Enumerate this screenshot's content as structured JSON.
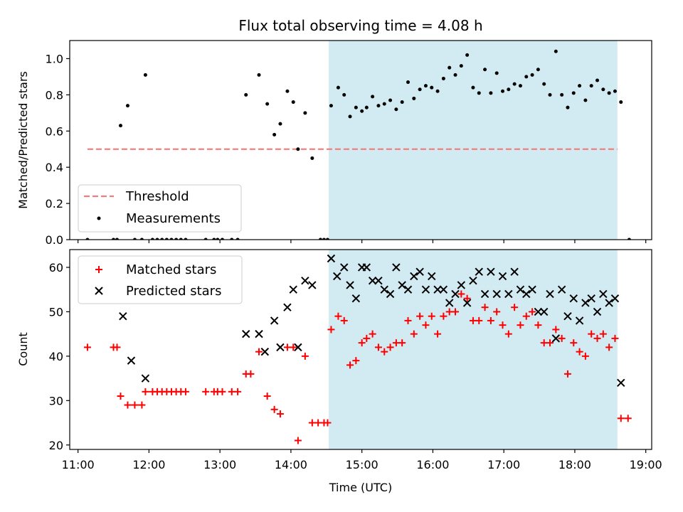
{
  "chart_data": [
    {
      "type": "scatter",
      "title": "Flux total observing time = 4.08 h",
      "xlabel": "",
      "ylabel": "Matched/Predicted stars",
      "xlim": [
        "10:53",
        "19:05"
      ],
      "ylim": [
        0,
        1.1
      ],
      "yticks": [
        "0.0",
        "0.2",
        "0.4",
        "0.6",
        "0.8",
        "1.0"
      ],
      "shaded_span": [
        "14:32",
        "18:36"
      ],
      "shade_color": "#add8e6",
      "legend": {
        "placement": "lower-left",
        "entries": [
          "Threshold",
          "Measurements"
        ]
      },
      "threshold": {
        "name": "Threshold",
        "y": 0.5,
        "x_range": [
          "11:08",
          "18:36"
        ],
        "color": "#f08080",
        "style": "dashed"
      },
      "series": [
        {
          "name": "Measurements",
          "marker": "dot",
          "color": "#000000",
          "points": [
            [
              "11:08",
              0.0
            ],
            [
              "11:30",
              0.0
            ],
            [
              "11:33",
              0.0
            ],
            [
              "11:36",
              0.63
            ],
            [
              "11:42",
              0.74
            ],
            [
              "11:48",
              0.0
            ],
            [
              "11:54",
              0.0
            ],
            [
              "11:57",
              0.91
            ],
            [
              "12:03",
              0.0
            ],
            [
              "12:07",
              0.0
            ],
            [
              "12:11",
              0.0
            ],
            [
              "12:15",
              0.0
            ],
            [
              "12:19",
              0.0
            ],
            [
              "12:23",
              0.0
            ],
            [
              "12:27",
              0.0
            ],
            [
              "12:31",
              0.0
            ],
            [
              "12:48",
              0.0
            ],
            [
              "12:55",
              0.0
            ],
            [
              "12:58",
              0.0
            ],
            [
              "13:02",
              0.0
            ],
            [
              "13:10",
              0.0
            ],
            [
              "13:15",
              0.0
            ],
            [
              "13:22",
              0.8
            ],
            [
              "13:33",
              0.91
            ],
            [
              "13:40",
              0.75
            ],
            [
              "13:46",
              0.58
            ],
            [
              "13:51",
              0.64
            ],
            [
              "13:57",
              0.82
            ],
            [
              "14:02",
              0.76
            ],
            [
              "14:06",
              0.5
            ],
            [
              "14:12",
              0.7
            ],
            [
              "14:18",
              0.45
            ],
            [
              "14:25",
              0.0
            ],
            [
              "14:28",
              0.0
            ],
            [
              "14:31",
              0.0
            ],
            [
              "14:34",
              0.74
            ],
            [
              "14:40",
              0.84
            ],
            [
              "14:45",
              0.8
            ],
            [
              "14:50",
              0.68
            ],
            [
              "14:55",
              0.73
            ],
            [
              "15:00",
              0.71
            ],
            [
              "15:04",
              0.73
            ],
            [
              "15:09",
              0.79
            ],
            [
              "15:14",
              0.74
            ],
            [
              "15:19",
              0.75
            ],
            [
              "15:24",
              0.77
            ],
            [
              "15:29",
              0.72
            ],
            [
              "15:34",
              0.76
            ],
            [
              "15:39",
              0.87
            ],
            [
              "15:44",
              0.78
            ],
            [
              "15:49",
              0.83
            ],
            [
              "15:54",
              0.85
            ],
            [
              "15:59",
              0.84
            ],
            [
              "16:04",
              0.82
            ],
            [
              "16:09",
              0.89
            ],
            [
              "16:14",
              0.95
            ],
            [
              "16:19",
              0.91
            ],
            [
              "16:24",
              0.96
            ],
            [
              "16:29",
              1.02
            ],
            [
              "16:34",
              0.84
            ],
            [
              "16:39",
              0.81
            ],
            [
              "16:44",
              0.94
            ],
            [
              "16:49",
              0.81
            ],
            [
              "16:54",
              0.92
            ],
            [
              "16:59",
              0.82
            ],
            [
              "17:04",
              0.83
            ],
            [
              "17:09",
              0.86
            ],
            [
              "17:14",
              0.85
            ],
            [
              "17:19",
              0.9
            ],
            [
              "17:24",
              0.91
            ],
            [
              "17:29",
              0.94
            ],
            [
              "17:34",
              0.86
            ],
            [
              "17:39",
              0.8
            ],
            [
              "17:44",
              1.04
            ],
            [
              "17:49",
              0.8
            ],
            [
              "17:54",
              0.73
            ],
            [
              "17:59",
              0.81
            ],
            [
              "18:04",
              0.85
            ],
            [
              "18:09",
              0.77
            ],
            [
              "18:14",
              0.85
            ],
            [
              "18:19",
              0.88
            ],
            [
              "18:24",
              0.83
            ],
            [
              "18:29",
              0.81
            ],
            [
              "18:34",
              0.82
            ],
            [
              "18:39",
              0.76
            ],
            [
              "18:46",
              0.0
            ]
          ]
        }
      ]
    },
    {
      "type": "scatter",
      "title": "",
      "xlabel": "Time (UTC)",
      "ylabel": "Count",
      "xlim": [
        "10:53",
        "19:05"
      ],
      "ylim": [
        19,
        64
      ],
      "yticks": [
        "20",
        "30",
        "40",
        "50",
        "60"
      ],
      "xticks": [
        "11:00",
        "12:00",
        "13:00",
        "14:00",
        "15:00",
        "16:00",
        "17:00",
        "18:00",
        "19:00"
      ],
      "shaded_span": [
        "14:32",
        "18:36"
      ],
      "shade_color": "#add8e6",
      "legend": {
        "placement": "upper-left",
        "entries": [
          "Matched stars",
          "Predicted stars"
        ]
      },
      "series": [
        {
          "name": "Matched stars",
          "marker": "plus",
          "color": "#ff0000",
          "points": [
            [
              "11:08",
              42
            ],
            [
              "11:30",
              42
            ],
            [
              "11:33",
              42
            ],
            [
              "11:36",
              31
            ],
            [
              "11:42",
              29
            ],
            [
              "11:48",
              29
            ],
            [
              "11:54",
              29
            ],
            [
              "11:57",
              32
            ],
            [
              "12:03",
              32
            ],
            [
              "12:07",
              32
            ],
            [
              "12:11",
              32
            ],
            [
              "12:15",
              32
            ],
            [
              "12:19",
              32
            ],
            [
              "12:23",
              32
            ],
            [
              "12:27",
              32
            ],
            [
              "12:31",
              32
            ],
            [
              "12:48",
              32
            ],
            [
              "12:55",
              32
            ],
            [
              "12:58",
              32
            ],
            [
              "13:02",
              32
            ],
            [
              "13:10",
              32
            ],
            [
              "13:15",
              32
            ],
            [
              "13:22",
              36
            ],
            [
              "13:26",
              36
            ],
            [
              "13:33",
              41
            ],
            [
              "13:40",
              31
            ],
            [
              "13:46",
              28
            ],
            [
              "13:51",
              27
            ],
            [
              "13:57",
              42
            ],
            [
              "14:02",
              42
            ],
            [
              "14:06",
              21
            ],
            [
              "14:12",
              40
            ],
            [
              "14:18",
              25
            ],
            [
              "14:23",
              25
            ],
            [
              "14:28",
              25
            ],
            [
              "14:31",
              25
            ],
            [
              "14:34",
              46
            ],
            [
              "14:40",
              49
            ],
            [
              "14:45",
              48
            ],
            [
              "14:50",
              38
            ],
            [
              "14:55",
              39
            ],
            [
              "15:00",
              43
            ],
            [
              "15:04",
              44
            ],
            [
              "15:09",
              45
            ],
            [
              "15:14",
              42
            ],
            [
              "15:19",
              41
            ],
            [
              "15:24",
              42
            ],
            [
              "15:29",
              43
            ],
            [
              "15:34",
              43
            ],
            [
              "15:39",
              48
            ],
            [
              "15:44",
              45
            ],
            [
              "15:49",
              49
            ],
            [
              "15:54",
              47
            ],
            [
              "15:59",
              49
            ],
            [
              "16:04",
              45
            ],
            [
              "16:09",
              49
            ],
            [
              "16:14",
              50
            ],
            [
              "16:19",
              50
            ],
            [
              "16:24",
              54
            ],
            [
              "16:29",
              53
            ],
            [
              "16:34",
              48
            ],
            [
              "16:39",
              48
            ],
            [
              "16:44",
              51
            ],
            [
              "16:49",
              48
            ],
            [
              "16:54",
              50
            ],
            [
              "16:59",
              47
            ],
            [
              "17:04",
              45
            ],
            [
              "17:09",
              51
            ],
            [
              "17:14",
              47
            ],
            [
              "17:19",
              49
            ],
            [
              "17:24",
              50
            ],
            [
              "17:29",
              47
            ],
            [
              "17:34",
              43
            ],
            [
              "17:39",
              43
            ],
            [
              "17:44",
              46
            ],
            [
              "17:49",
              44
            ],
            [
              "17:54",
              36
            ],
            [
              "17:59",
              43
            ],
            [
              "18:04",
              41
            ],
            [
              "18:09",
              40
            ],
            [
              "18:14",
              45
            ],
            [
              "18:19",
              44
            ],
            [
              "18:24",
              45
            ],
            [
              "18:29",
              42
            ],
            [
              "18:34",
              44
            ],
            [
              "18:39",
              26
            ],
            [
              "18:45",
              26
            ]
          ]
        },
        {
          "name": "Predicted stars",
          "marker": "x",
          "color": "#000000",
          "points": [
            [
              "11:38",
              49
            ],
            [
              "11:45",
              39
            ],
            [
              "11:57",
              35
            ],
            [
              "13:22",
              45
            ],
            [
              "13:33",
              45
            ],
            [
              "13:38",
              41
            ],
            [
              "13:46",
              48
            ],
            [
              "13:51",
              42
            ],
            [
              "13:57",
              51
            ],
            [
              "14:02",
              55
            ],
            [
              "14:06",
              42
            ],
            [
              "14:12",
              57
            ],
            [
              "14:18",
              56
            ],
            [
              "14:34",
              62
            ],
            [
              "14:39",
              58
            ],
            [
              "14:45",
              60
            ],
            [
              "14:50",
              56
            ],
            [
              "14:55",
              53
            ],
            [
              "15:00",
              60
            ],
            [
              "15:04",
              60
            ],
            [
              "15:09",
              57
            ],
            [
              "15:14",
              57
            ],
            [
              "15:19",
              55
            ],
            [
              "15:24",
              54
            ],
            [
              "15:29",
              60
            ],
            [
              "15:34",
              56
            ],
            [
              "15:39",
              55
            ],
            [
              "15:44",
              58
            ],
            [
              "15:49",
              59
            ],
            [
              "15:54",
              55
            ],
            [
              "15:59",
              58
            ],
            [
              "16:04",
              55
            ],
            [
              "16:09",
              55
            ],
            [
              "16:14",
              52
            ],
            [
              "16:19",
              54
            ],
            [
              "16:24",
              56
            ],
            [
              "16:29",
              52
            ],
            [
              "16:34",
              57
            ],
            [
              "16:39",
              59
            ],
            [
              "16:44",
              54
            ],
            [
              "16:49",
              59
            ],
            [
              "16:54",
              54
            ],
            [
              "16:59",
              58
            ],
            [
              "17:04",
              54
            ],
            [
              "17:09",
              59
            ],
            [
              "17:14",
              55
            ],
            [
              "17:19",
              54
            ],
            [
              "17:24",
              55
            ],
            [
              "17:29",
              50
            ],
            [
              "17:34",
              50
            ],
            [
              "17:39",
              54
            ],
            [
              "17:44",
              44
            ],
            [
              "17:49",
              55
            ],
            [
              "17:54",
              49
            ],
            [
              "17:59",
              53
            ],
            [
              "18:04",
              48
            ],
            [
              "18:09",
              52
            ],
            [
              "18:14",
              53
            ],
            [
              "18:19",
              50
            ],
            [
              "18:24",
              54
            ],
            [
              "18:29",
              52
            ],
            [
              "18:34",
              53
            ],
            [
              "18:39",
              34
            ]
          ]
        }
      ]
    }
  ]
}
